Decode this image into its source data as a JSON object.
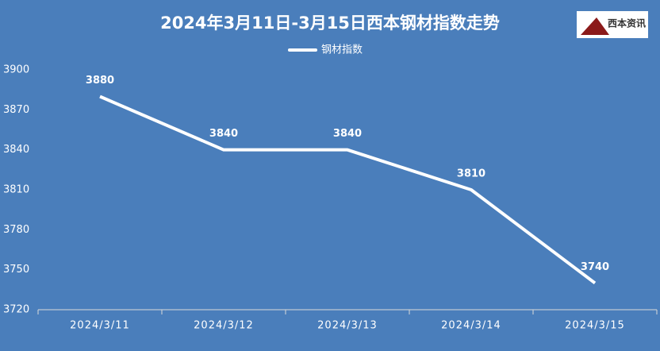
{
  "chart_data": {
    "type": "line",
    "title": "2024年3月11日-3月15日西本钢材指数走势",
    "logo": "西本资讯",
    "categories": [
      "2024/3/11",
      "2024/3/12",
      "2024/3/13",
      "2024/3/14",
      "2024/3/15"
    ],
    "series": [
      {
        "name": "钢材指数",
        "color": "#ffffff",
        "values": [
          3880,
          3840,
          3840,
          3810,
          3740
        ]
      }
    ],
    "ylim": [
      3720,
      3900
    ],
    "yticks": [
      3720,
      3750,
      3780,
      3810,
      3840,
      3870,
      3900
    ],
    "grid": false,
    "legend": "top"
  }
}
